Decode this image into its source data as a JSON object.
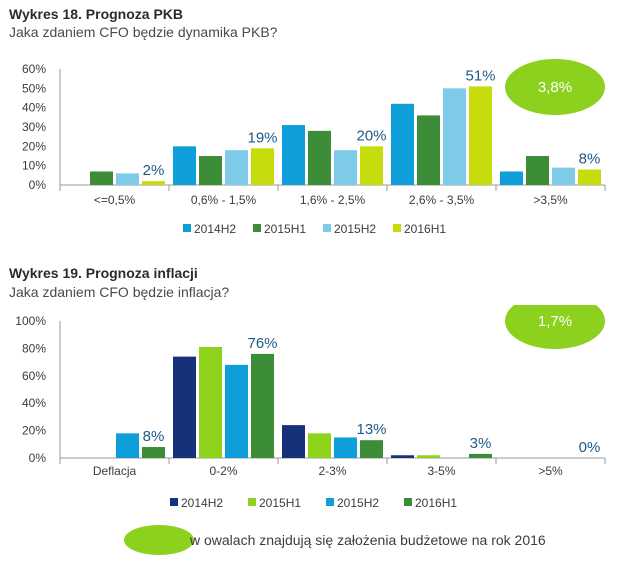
{
  "chart_data": [
    {
      "type": "bar",
      "title": "Wykres 18. Prognoza PKB",
      "subtitle": "Jaka zdaniem CFO będzie dynamika PKB?",
      "categories": [
        "<=0,5%",
        "0,6% - 1,5%",
        "1,6% - 2,5%",
        "2,6% - 3,5%",
        ">3,5%"
      ],
      "series": [
        {
          "name": "2014H2",
          "color": "#0e9ed9",
          "values": [
            0,
            20,
            31,
            42,
            7
          ]
        },
        {
          "name": "2015H1",
          "color": "#3d8c38",
          "values": [
            7,
            15,
            28,
            36,
            15
          ]
        },
        {
          "name": "2015H2",
          "color": "#7ecbe9",
          "values": [
            6,
            18,
            18,
            50,
            9
          ]
        },
        {
          "name": "2016H1",
          "color": "#c6dc0d",
          "values": [
            2,
            19,
            20,
            51,
            8
          ]
        }
      ],
      "data_labels": [
        "2%",
        "19%",
        "20%",
        "51%",
        "8%"
      ],
      "yticks": [
        "0%",
        "10%",
        "20%",
        "30%",
        "40%",
        "50%",
        "60%"
      ],
      "ylim": [
        0,
        60
      ],
      "xlabel": "",
      "ylabel": "",
      "oval_label": "3,8%",
      "oval_color": "#8cd11e"
    },
    {
      "type": "bar",
      "title": "Wykres 19. Prognoza inflacji",
      "subtitle": "Jaka zdaniem CFO będzie inflacja?",
      "categories": [
        "Deflacja",
        "0-2%",
        "2-3%",
        "3-5%",
        ">5%"
      ],
      "series": [
        {
          "name": "2014H2",
          "color": "#16307a",
          "values": [
            0,
            74,
            24,
            2,
            0
          ]
        },
        {
          "name": "2015H1",
          "color": "#8fd21c",
          "values": [
            0,
            81,
            18,
            2,
            0
          ]
        },
        {
          "name": "2015H2",
          "color": "#0e9ed9",
          "values": [
            18,
            68,
            15,
            0,
            0
          ]
        },
        {
          "name": "2016H1",
          "color": "#3d8c38",
          "values": [
            8,
            76,
            13,
            3,
            0
          ]
        }
      ],
      "data_labels": [
        "8%",
        "76%",
        "13%",
        "3%",
        "0%"
      ],
      "yticks": [
        "0%",
        "20%",
        "40%",
        "60%",
        "80%",
        "100%"
      ],
      "ylim": [
        0,
        100
      ],
      "xlabel": "",
      "ylabel": "",
      "oval_label": "1,7%",
      "oval_color": "#8cd11e"
    }
  ],
  "footnote": {
    "text": "w owalach znajdują się założenia budżetowe na rok 2016",
    "oval_color": "#8cd11e"
  }
}
